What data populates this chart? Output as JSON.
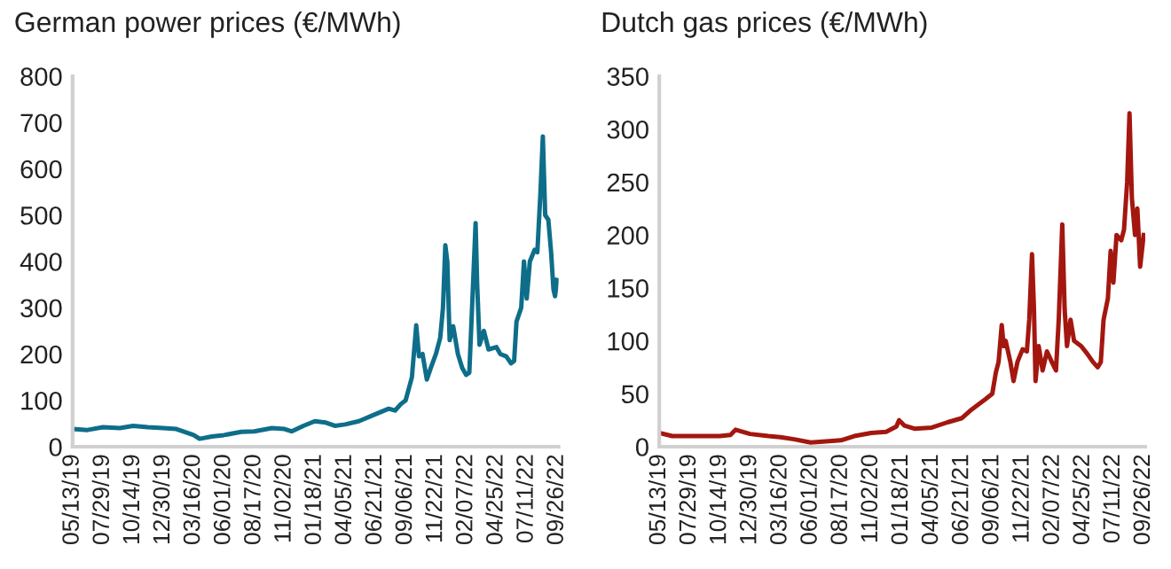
{
  "chart_data": [
    {
      "type": "line",
      "title": "German power prices (€/MWh)",
      "x": [
        "2019-05-13",
        "2019-06-20",
        "2019-07-29",
        "2019-09-10",
        "2019-10-14",
        "2019-11-20",
        "2019-12-30",
        "2020-02-01",
        "2020-03-16",
        "2020-03-31",
        "2020-05-01",
        "2020-06-01",
        "2020-07-15",
        "2020-08-17",
        "2020-10-01",
        "2020-11-02",
        "2020-11-20",
        "2020-12-20",
        "2021-01-18",
        "2021-02-15",
        "2021-03-10",
        "2021-04-05",
        "2021-05-10",
        "2021-06-21",
        "2021-07-25",
        "2021-08-10",
        "2021-08-25",
        "2021-09-06",
        "2021-09-22",
        "2021-10-03",
        "2021-10-10",
        "2021-10-19",
        "2021-10-30",
        "2021-11-09",
        "2021-11-22",
        "2021-12-03",
        "2021-12-10",
        "2021-12-16",
        "2021-12-21",
        "2021-12-27",
        "2022-01-05",
        "2022-01-17",
        "2022-01-28",
        "2022-02-07",
        "2022-02-15",
        "2022-02-22",
        "2022-03-03",
        "2022-03-07",
        "2022-03-13",
        "2022-03-24",
        "2022-04-05",
        "2022-04-25",
        "2022-05-05",
        "2022-05-20",
        "2022-06-01",
        "2022-06-09",
        "2022-06-15",
        "2022-06-27",
        "2022-07-04",
        "2022-07-11",
        "2022-07-19",
        "2022-07-31",
        "2022-08-07",
        "2022-08-15",
        "2022-08-21",
        "2022-08-27",
        "2022-09-04",
        "2022-09-11",
        "2022-09-17",
        "2022-09-21",
        "2022-09-26"
      ],
      "series": [
        {
          "color": "#0e6e8a",
          "values": [
            38,
            36,
            42,
            40,
            45,
            42,
            40,
            38,
            25,
            17,
            22,
            25,
            32,
            33,
            40,
            38,
            33,
            45,
            55,
            52,
            45,
            48,
            55,
            70,
            82,
            78,
            92,
            100,
            150,
            262,
            195,
            200,
            145,
            170,
            200,
            235,
            300,
            435,
            400,
            230,
            260,
            200,
            170,
            155,
            160,
            300,
            483,
            350,
            220,
            250,
            210,
            215,
            200,
            195,
            180,
            185,
            270,
            300,
            400,
            320,
            400,
            425,
            420,
            550,
            670,
            500,
            490,
            420,
            340,
            325,
            360
          ]
        }
      ],
      "xlim": [
        "2019-05-13",
        "2022-09-30"
      ],
      "xticks": [
        {
          "value": "2019-05-13",
          "label": "05/13/19"
        },
        {
          "value": "2019-07-29",
          "label": "07/29/19"
        },
        {
          "value": "2019-10-14",
          "label": "10/14/19"
        },
        {
          "value": "2019-12-30",
          "label": "12/30/19"
        },
        {
          "value": "2020-03-16",
          "label": "03/16/20"
        },
        {
          "value": "2020-06-01",
          "label": "06/01/20"
        },
        {
          "value": "2020-08-17",
          "label": "08/17/20"
        },
        {
          "value": "2020-11-02",
          "label": "11/02/20"
        },
        {
          "value": "2021-01-18",
          "label": "01/18/21"
        },
        {
          "value": "2021-04-05",
          "label": "04/05/21"
        },
        {
          "value": "2021-06-21",
          "label": "06/21/21"
        },
        {
          "value": "2021-09-06",
          "label": "09/06/21"
        },
        {
          "value": "2021-11-22",
          "label": "11/22/21"
        },
        {
          "value": "2022-02-07",
          "label": "02/07/22"
        },
        {
          "value": "2022-04-25",
          "label": "04/25/22"
        },
        {
          "value": "2022-07-11",
          "label": "07/11/22"
        },
        {
          "value": "2022-09-26",
          "label": "09/26/22"
        }
      ],
      "ylim": [
        0,
        800
      ],
      "yticks": [
        0,
        100,
        200,
        300,
        400,
        500,
        600,
        700,
        800
      ],
      "grid": false,
      "legend": false
    },
    {
      "type": "line",
      "title": "Dutch gas prices (€/MWh)",
      "x": [
        "2019-05-13",
        "2019-06-15",
        "2019-07-29",
        "2019-09-01",
        "2019-10-14",
        "2019-11-10",
        "2019-11-23",
        "2019-12-30",
        "2020-02-15",
        "2020-03-16",
        "2020-04-20",
        "2020-06-01",
        "2020-07-10",
        "2020-08-17",
        "2020-09-20",
        "2020-11-02",
        "2020-12-10",
        "2021-01-05",
        "2021-01-12",
        "2021-01-25",
        "2021-02-20",
        "2021-04-05",
        "2021-05-15",
        "2021-06-21",
        "2021-07-15",
        "2021-08-20",
        "2021-09-06",
        "2021-09-15",
        "2021-09-22",
        "2021-09-30",
        "2021-10-05",
        "2021-10-10",
        "2021-10-22",
        "2021-10-30",
        "2021-11-09",
        "2021-11-22",
        "2021-12-03",
        "2021-12-09",
        "2021-12-16",
        "2021-12-21",
        "2021-12-25",
        "2022-01-02",
        "2022-01-12",
        "2022-01-23",
        "2022-02-07",
        "2022-02-15",
        "2022-02-22",
        "2022-03-03",
        "2022-03-09",
        "2022-03-15",
        "2022-03-24",
        "2022-04-02",
        "2022-04-20",
        "2022-05-05",
        "2022-05-20",
        "2022-06-01",
        "2022-06-09",
        "2022-06-16",
        "2022-06-27",
        "2022-07-04",
        "2022-07-11",
        "2022-07-19",
        "2022-07-31",
        "2022-08-07",
        "2022-08-15",
        "2022-08-21",
        "2022-08-27",
        "2022-09-04",
        "2022-09-10",
        "2022-09-17",
        "2022-09-26"
      ],
      "series": [
        {
          "color": "#a3170f",
          "values": [
            13,
            10,
            10,
            10,
            10,
            11,
            16,
            12,
            10,
            9,
            7,
            4,
            5,
            6,
            10,
            13,
            14,
            19,
            25,
            20,
            17,
            18,
            23,
            27,
            35,
            45,
            50,
            70,
            80,
            115,
            95,
            100,
            80,
            62,
            80,
            92,
            90,
            120,
            182,
            130,
            62,
            95,
            72,
            90,
            78,
            72,
            120,
            210,
            130,
            95,
            120,
            100,
            95,
            88,
            80,
            75,
            80,
            120,
            140,
            185,
            155,
            200,
            195,
            205,
            250,
            315,
            235,
            200,
            225,
            170,
            200
          ]
        }
      ],
      "xlim": [
        "2019-05-13",
        "2022-09-30"
      ],
      "xticks": [
        {
          "value": "2019-05-13",
          "label": "05/13/19"
        },
        {
          "value": "2019-07-29",
          "label": "07/29/19"
        },
        {
          "value": "2019-10-14",
          "label": "10/14/19"
        },
        {
          "value": "2019-12-30",
          "label": "12/30/19"
        },
        {
          "value": "2020-03-16",
          "label": "03/16/20"
        },
        {
          "value": "2020-06-01",
          "label": "06/01/20"
        },
        {
          "value": "2020-08-17",
          "label": "08/17/20"
        },
        {
          "value": "2020-11-02",
          "label": "11/02/20"
        },
        {
          "value": "2021-01-18",
          "label": "01/18/21"
        },
        {
          "value": "2021-04-05",
          "label": "04/05/21"
        },
        {
          "value": "2021-06-21",
          "label": "06/21/21"
        },
        {
          "value": "2021-09-06",
          "label": "09/06/21"
        },
        {
          "value": "2021-11-22",
          "label": "11/22/21"
        },
        {
          "value": "2022-02-07",
          "label": "02/07/22"
        },
        {
          "value": "2022-04-25",
          "label": "04/25/22"
        },
        {
          "value": "2022-07-11",
          "label": "07/11/22"
        },
        {
          "value": "2022-09-26",
          "label": "09/26/22"
        }
      ],
      "ylim": [
        0,
        350
      ],
      "yticks": [
        0,
        50,
        100,
        150,
        200,
        250,
        300,
        350
      ],
      "grid": false,
      "legend": false
    }
  ]
}
